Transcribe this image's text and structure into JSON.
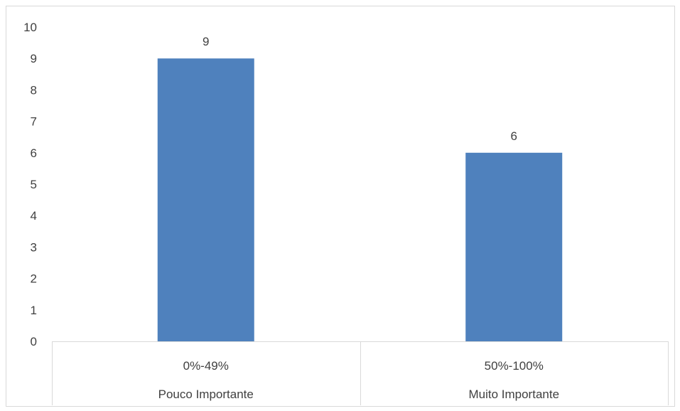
{
  "chart_data": {
    "type": "bar",
    "categories": [
      {
        "top": "0%-49%",
        "bottom": "Pouco Importante"
      },
      {
        "top": "50%-100%",
        "bottom": "Muito Importante"
      }
    ],
    "values": [
      9,
      6
    ],
    "data_labels": [
      "9",
      "6"
    ],
    "ylim": [
      0,
      10
    ],
    "yticks": [
      0,
      1,
      2,
      3,
      4,
      5,
      6,
      7,
      8,
      9,
      10
    ],
    "title": "",
    "xlabel": "",
    "ylabel": "",
    "grid": false,
    "legend": "none",
    "bar_color": "#4f81bd"
  }
}
